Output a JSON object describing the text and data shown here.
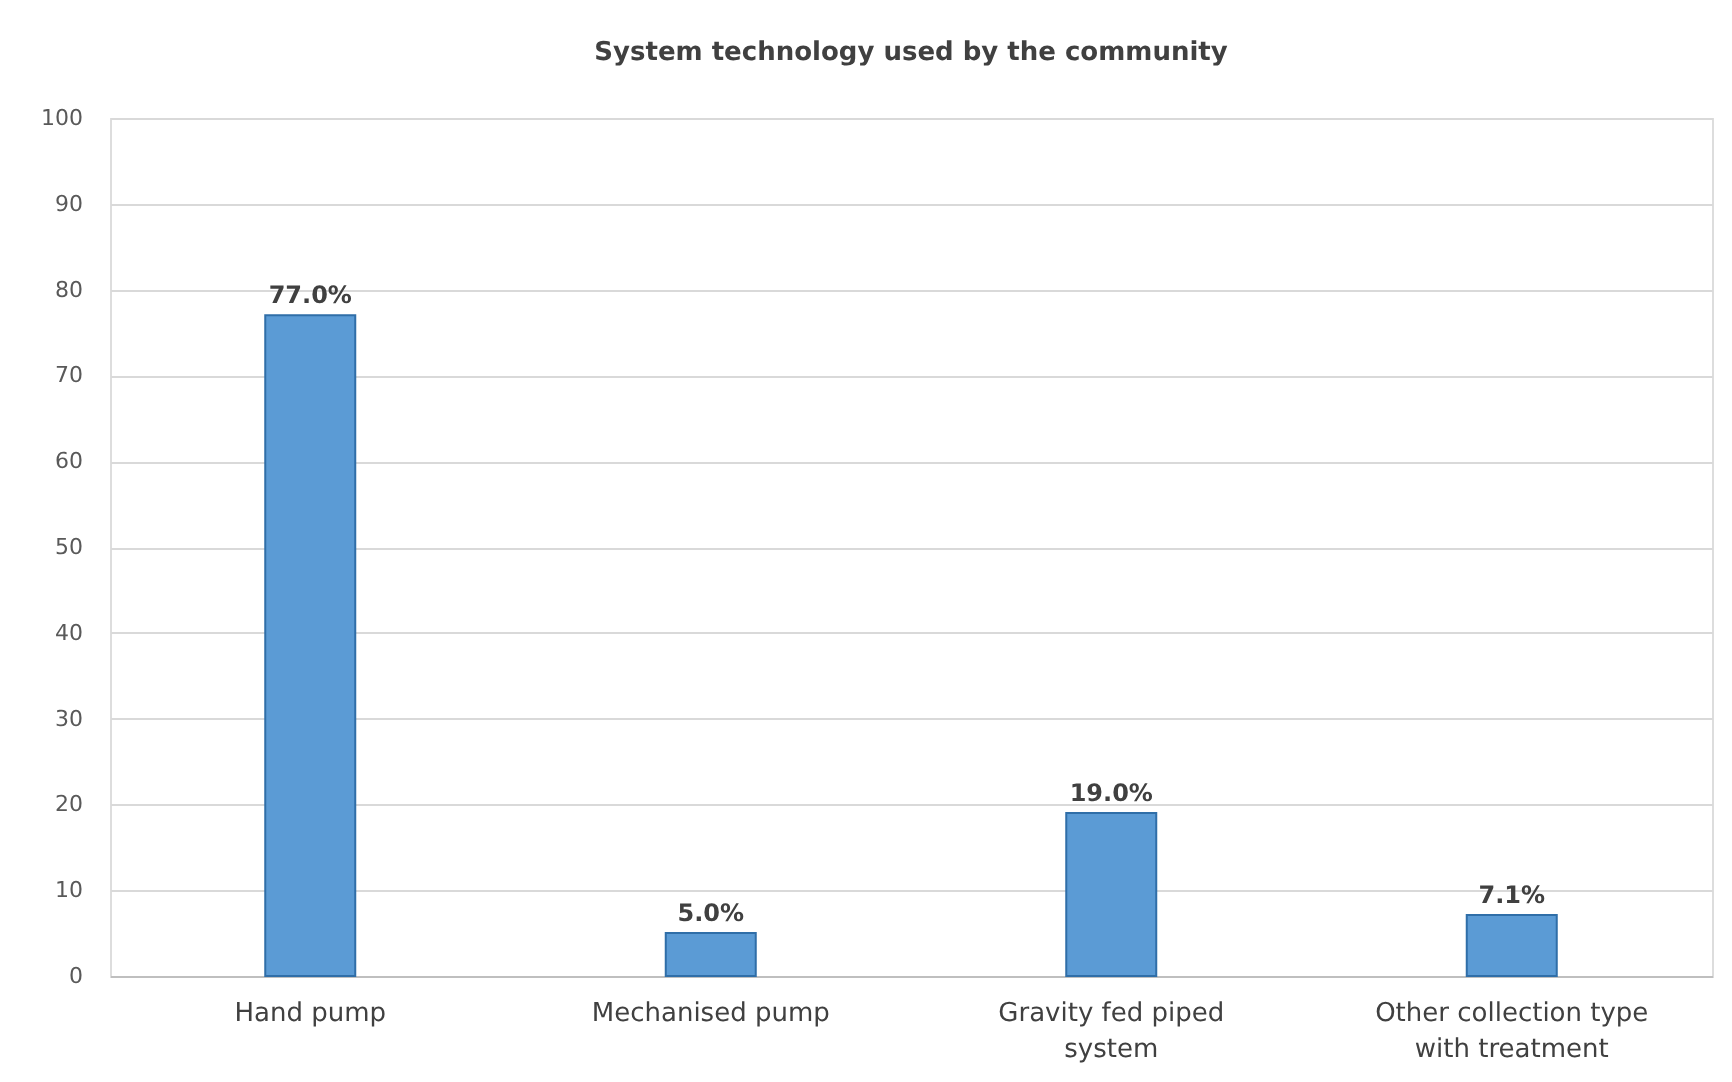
{
  "chart_data": {
    "type": "bar",
    "title": "System technology used by the community",
    "categories": [
      "Hand pump",
      "Mechanised pump",
      "Gravity fed piped system",
      "Other collection type with treatment"
    ],
    "values": [
      77.0,
      5.0,
      19.0,
      7.1
    ],
    "value_labels": [
      "77.0%",
      "5.0%",
      "19.0%",
      "7.1%"
    ],
    "color": "#5b9bd5",
    "ylim": [
      0,
      100
    ],
    "yticks": [
      0,
      10,
      20,
      30,
      40,
      50,
      60,
      70,
      80,
      90,
      100
    ],
    "grid": "y"
  }
}
